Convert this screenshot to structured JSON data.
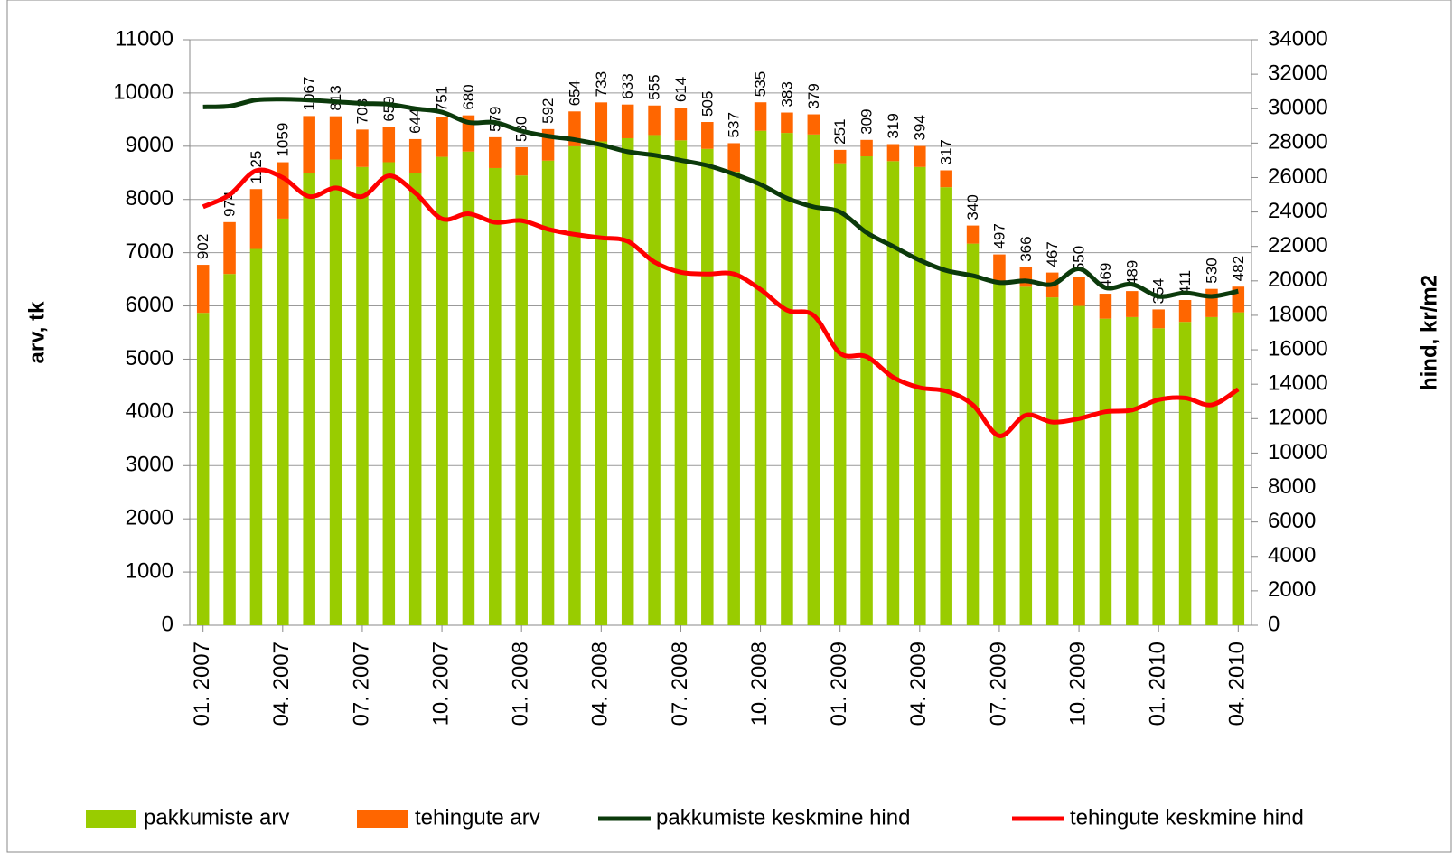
{
  "chart_data": {
    "type": "bar",
    "categories": [
      "01. 2007",
      null,
      null,
      "04. 2007",
      null,
      null,
      "07. 2007",
      null,
      null,
      "10. 2007",
      null,
      null,
      "01. 2008",
      null,
      null,
      "04. 2008",
      null,
      null,
      "07. 2008",
      null,
      null,
      "10. 2008",
      null,
      null,
      "01. 2009",
      null,
      null,
      "04. 2009",
      null,
      null,
      "07. 2009",
      null,
      null,
      "10. 2009",
      null,
      null,
      "01. 2010",
      null,
      null,
      "04. 2010"
    ],
    "series": [
      {
        "name": "pakkumiste arv",
        "color": "#99cc00",
        "stack": true,
        "values": [
          5870,
          6600,
          7070,
          7640,
          8500,
          8750,
          8610,
          8700,
          8490,
          8800,
          8900,
          8590,
          8450,
          8730,
          9000,
          9090,
          9150,
          9210,
          9110,
          8950,
          8520,
          9290,
          9250,
          9220,
          8680,
          8810,
          8720,
          8610,
          8230,
          7170,
          6470,
          6360,
          6160,
          6000,
          5760,
          5790,
          5580,
          5700,
          5790,
          5880
        ]
      },
      {
        "name": "tehingute arv",
        "color": "#ff6600",
        "stack": true,
        "show_labels": true,
        "values": [
          902,
          974,
          1125,
          1059,
          1067,
          813,
          703,
          659,
          644,
          751,
          680,
          579,
          530,
          592,
          654,
          733,
          633,
          555,
          614,
          505,
          537,
          535,
          383,
          379,
          251,
          309,
          319,
          394,
          317,
          340,
          497,
          366,
          467,
          550,
          469,
          489,
          354,
          411,
          530,
          482
        ]
      },
      {
        "name": "pakkumiste keskmine hind",
        "color": "#0b3a0b",
        "type": "line",
        "axis": "y2",
        "values": [
          30100,
          30150,
          30500,
          30550,
          30500,
          30400,
          30300,
          30250,
          30000,
          29800,
          29200,
          29200,
          28700,
          28400,
          28200,
          27900,
          27500,
          27300,
          27000,
          26700,
          26200,
          25600,
          24800,
          24300,
          24000,
          22800,
          22000,
          21200,
          20600,
          20300,
          19900,
          20000,
          19800,
          20700,
          19600,
          19800,
          19100,
          19300,
          19100,
          19400
        ]
      },
      {
        "name": "tehingute keskmine hind",
        "color": "#ff0000",
        "type": "line",
        "axis": "y2",
        "values": [
          24300,
          25000,
          26400,
          26000,
          24900,
          25400,
          24900,
          26100,
          25100,
          23600,
          23900,
          23400,
          23500,
          23000,
          22700,
          22500,
          22300,
          21100,
          20500,
          20400,
          20400,
          19500,
          18300,
          18000,
          15800,
          15600,
          14400,
          13800,
          13600,
          12800,
          11000,
          12200,
          11800,
          12000,
          12400,
          12500,
          13100,
          13200,
          12800,
          13700
        ]
      }
    ],
    "ylabel": "arv, tk",
    "y2label": "hind, kr/m2",
    "ylim": [
      0,
      11000
    ],
    "yticks": [
      0,
      1000,
      2000,
      3000,
      4000,
      5000,
      6000,
      7000,
      8000,
      9000,
      10000,
      11000
    ],
    "y2lim": [
      0,
      34000
    ],
    "y2ticks": [
      0,
      2000,
      4000,
      6000,
      8000,
      10000,
      12000,
      14000,
      16000,
      18000,
      20000,
      22000,
      24000,
      26000,
      28000,
      30000,
      32000,
      34000
    ],
    "grid": true,
    "legend": "bottom"
  }
}
